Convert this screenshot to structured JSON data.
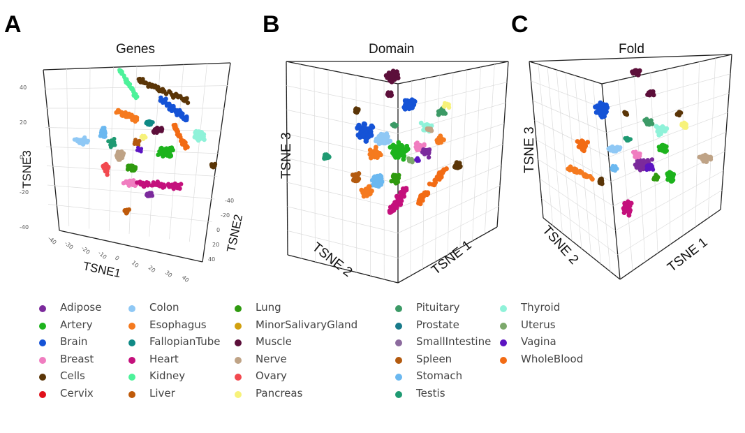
{
  "panels": [
    {
      "letter": "A",
      "title": "Genes",
      "axes": [
        "TSNE1",
        "TSNE2",
        "TSNE3"
      ],
      "ticks_z": [
        "40",
        "20",
        "0",
        "-20",
        "-40"
      ],
      "ticks_x": [
        "-40",
        "-30",
        "-20",
        "-10",
        "0",
        "10",
        "20",
        "30",
        "40"
      ],
      "ticks_y": [
        "-40",
        "-20",
        "0",
        "20",
        "40"
      ]
    },
    {
      "letter": "B",
      "title": "Domain",
      "axes": [
        "TSNE 1",
        "TSNE 2",
        "TSNE 3"
      ]
    },
    {
      "letter": "C",
      "title": "Fold",
      "axes": [
        "TSNE 1",
        "TSNE 2",
        "TSNE 3"
      ]
    }
  ],
  "legend": {
    "title": "",
    "items": [
      {
        "label": "Adipose",
        "color": "#7b2a9c"
      },
      {
        "label": "Artery",
        "color": "#1db31d"
      },
      {
        "label": "Brain",
        "color": "#1553d6"
      },
      {
        "label": "Breast",
        "color": "#f07dc0"
      },
      {
        "label": "Cells",
        "color": "#5a3507"
      },
      {
        "label": "Cervix",
        "color": "#e0101a"
      },
      {
        "label": "Colon",
        "color": "#8fc8f5"
      },
      {
        "label": "Esophagus",
        "color": "#f57a1f"
      },
      {
        "label": "FallopianTube",
        "color": "#0f8a86"
      },
      {
        "label": "Heart",
        "color": "#c4107c"
      },
      {
        "label": "Kidney",
        "color": "#4df29a"
      },
      {
        "label": "Liver",
        "color": "#bf5a0a"
      },
      {
        "label": "Lung",
        "color": "#2f9a0f"
      },
      {
        "label": "MinorSalivaryGland",
        "color": "#d1a00f"
      },
      {
        "label": "Muscle",
        "color": "#5c0f3a"
      },
      {
        "label": "Nerve",
        "color": "#bfa386"
      },
      {
        "label": "Ovary",
        "color": "#f2494f"
      },
      {
        "label": "Pancreas",
        "color": "#f7f27a"
      },
      {
        "label": "Pituitary",
        "color": "#3c9a66"
      },
      {
        "label": "Prostate",
        "color": "#187a8a"
      },
      {
        "label": "SmallIntestine",
        "color": "#8c6b9e"
      },
      {
        "label": "Spleen",
        "color": "#b35a0f"
      },
      {
        "label": "Stomach",
        "color": "#6bb8f0"
      },
      {
        "label": "Testis",
        "color": "#1f9a72"
      },
      {
        "label": "Thyroid",
        "color": "#8ff2d9"
      },
      {
        "label": "Uterus",
        "color": "#7ca86b"
      },
      {
        "label": "Vagina",
        "color": "#5c14c2"
      },
      {
        "label": "WholeBlood",
        "color": "#f26b14"
      }
    ]
  },
  "chart_data": [
    {
      "type": "scatter",
      "title": "Genes",
      "xlabel": "TSNE1",
      "ylabel": "TSNE2",
      "zlabel": "TSNE3",
      "xlim": [
        -40,
        40
      ],
      "ylim": [
        -40,
        40
      ],
      "zlim": [
        -40,
        40
      ],
      "grid": true,
      "series": [
        {
          "name": "Adipose",
          "points": [
            [
              3,
              -2,
              -15
            ],
            [
              5,
              0,
              -20
            ]
          ]
        },
        {
          "name": "Artery",
          "points": [
            [
              10,
              5,
              5
            ],
            [
              14,
              8,
              2
            ]
          ]
        },
        {
          "name": "Brain",
          "points": [
            [
              25,
              10,
              28
            ],
            [
              28,
              14,
              24
            ]
          ]
        },
        {
          "name": "Breast",
          "points": [
            [
              -5,
              -8,
              -15
            ],
            [
              0,
              -5,
              -16
            ]
          ]
        },
        {
          "name": "Cells",
          "points": [
            [
              15,
              30,
              38
            ],
            [
              28,
              32,
              35
            ],
            [
              35,
              -20,
              -5
            ]
          ]
        },
        {
          "name": "Cervix",
          "points": [
            [
              -10,
              -6,
              -10
            ]
          ]
        },
        {
          "name": "Colon",
          "points": [
            [
              -38,
              -10,
              10
            ],
            [
              -12,
              0,
              12
            ]
          ]
        },
        {
          "name": "Esophagus",
          "points": [
            [
              -6,
              12,
              20
            ],
            [
              30,
              8,
              15
            ]
          ]
        },
        {
          "name": "FallopianTube",
          "points": [
            [
              2,
              6,
              12
            ]
          ]
        },
        {
          "name": "Heart",
          "points": [
            [
              10,
              -8,
              -15
            ],
            [
              18,
              -10,
              -16
            ]
          ]
        },
        {
          "name": "Kidney",
          "points": [
            [
              -3,
              40,
              45
            ]
          ]
        },
        {
          "name": "Liver",
          "points": [
            [
              -2,
              -30,
              -38
            ]
          ]
        },
        {
          "name": "Lung",
          "points": [
            [
              0,
              -3,
              0
            ]
          ]
        },
        {
          "name": "MinorSalivaryGland",
          "points": [
            [
              5,
              3,
              8
            ]
          ]
        },
        {
          "name": "Muscle",
          "points": [
            [
              20,
              12,
              8
            ]
          ]
        },
        {
          "name": "Nerve",
          "points": [
            [
              -12,
              -6,
              0
            ]
          ]
        },
        {
          "name": "Ovary",
          "points": [
            [
              -18,
              -8,
              -8
            ]
          ]
        },
        {
          "name": "Pancreas",
          "points": [
            [
              8,
              5,
              10
            ]
          ]
        },
        {
          "name": "Pituitary",
          "points": [
            [
              -8,
              2,
              5
            ]
          ]
        },
        {
          "name": "Prostate",
          "points": [
            [
              12,
              6,
              14
            ]
          ]
        },
        {
          "name": "SmallIntestine",
          "points": [
            [
              4,
              -2,
              2
            ]
          ]
        },
        {
          "name": "Spleen",
          "points": [
            [
              -9,
              -3,
              -1
            ]
          ]
        },
        {
          "name": "Stomach",
          "points": [
            [
              -14,
              -2,
              6
            ]
          ]
        },
        {
          "name": "Testis",
          "points": [
            [
              16,
              2,
              8
            ]
          ]
        },
        {
          "name": "Thyroid",
          "points": [
            [
              38,
              -2,
              12
            ]
          ]
        },
        {
          "name": "Uterus",
          "points": [
            [
              6,
              1,
              3
            ]
          ]
        },
        {
          "name": "Vagina",
          "points": [
            [
              3,
              -1,
              -2
            ]
          ]
        },
        {
          "name": "WholeBlood",
          "points": [
            [
              22,
              4,
              12
            ]
          ]
        }
      ]
    },
    {
      "type": "scatter",
      "title": "Domain",
      "xlabel": "TSNE 1",
      "ylabel": "TSNE 2",
      "zlabel": "TSNE 3",
      "grid": true
    },
    {
      "type": "scatter",
      "title": "Fold",
      "xlabel": "TSNE 1",
      "ylabel": "TSNE 2",
      "zlabel": "TSNE 3",
      "grid": true
    }
  ]
}
